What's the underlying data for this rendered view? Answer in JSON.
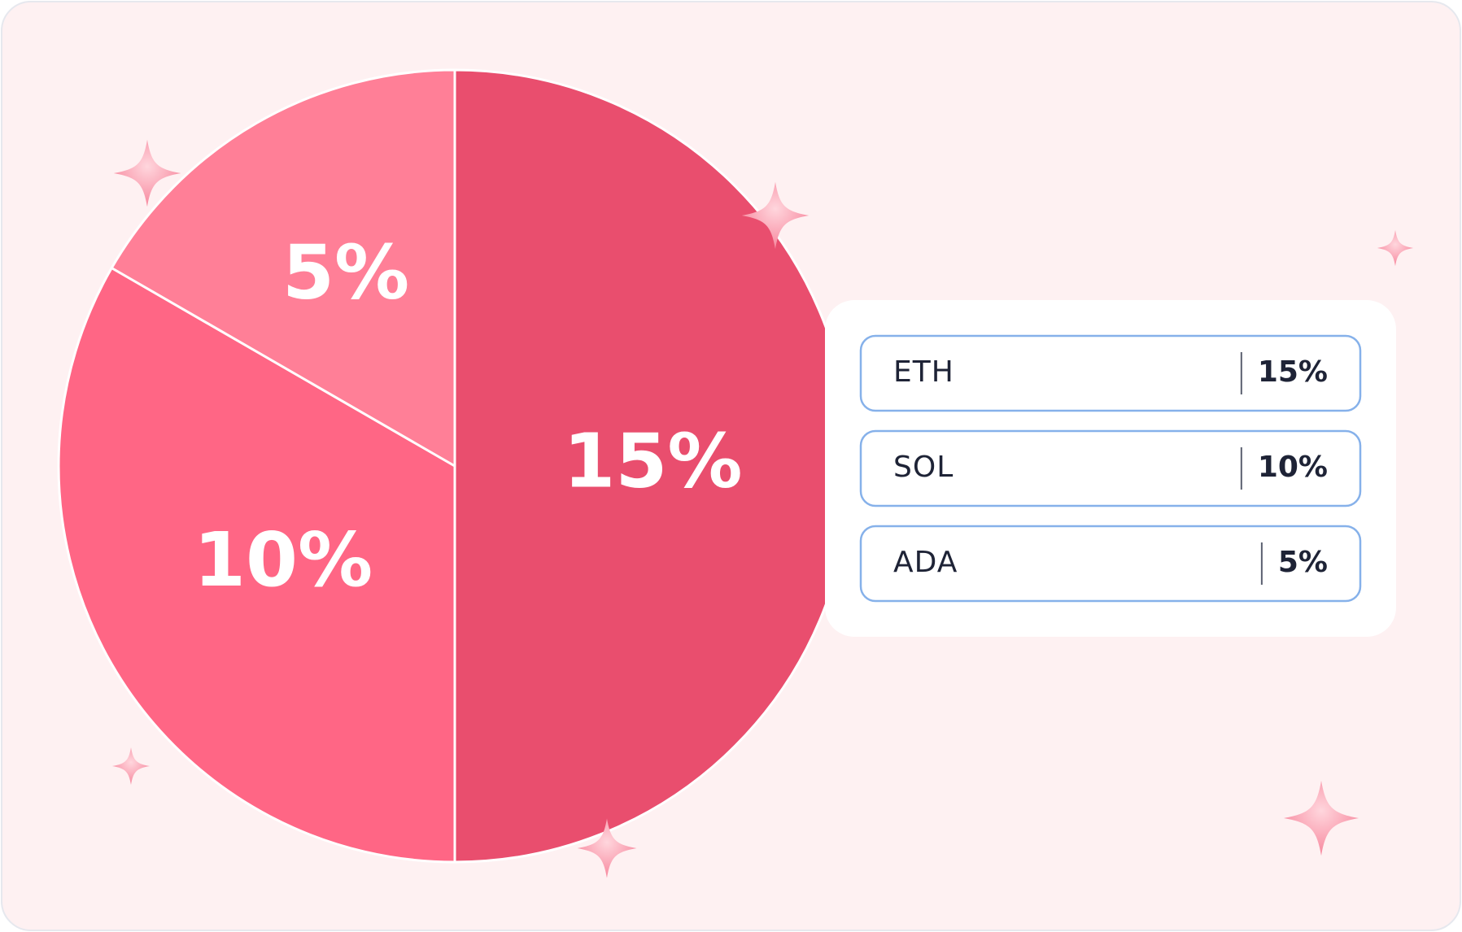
{
  "chart_data": {
    "type": "pie",
    "categories": [
      "ETH",
      "SOL",
      "ADA"
    ],
    "values": [
      15,
      10,
      5
    ],
    "value_labels": [
      "15%",
      "10%",
      "5%"
    ],
    "colors": [
      "#e94e6e",
      "#ff6685",
      "#ff7f97"
    ]
  }
}
